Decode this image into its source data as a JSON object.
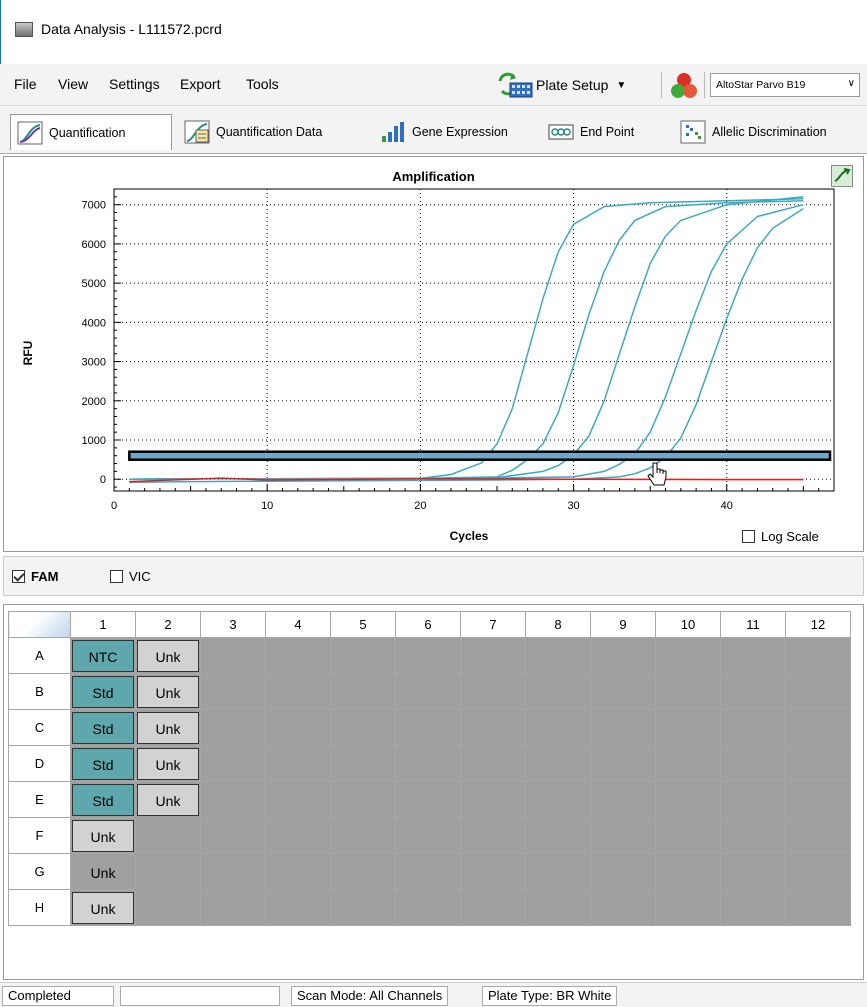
{
  "window": {
    "title": "Data Analysis - L111572.pcrd"
  },
  "menu": {
    "items": [
      "File",
      "View",
      "Settings",
      "Export",
      "Tools"
    ],
    "plate_setup": "Plate Setup",
    "assay": "AltoStar Parvo B19"
  },
  "tabs": [
    "Quantification",
    "Quantification Data",
    "Gene Expression",
    "End Point",
    "Allelic Discrimination"
  ],
  "colors": {
    "curve": "#3fa9bd",
    "ntc_curve": "#e02020",
    "threshold": "#000000",
    "teal_well": "#5ea7ad",
    "grey_well": "#d2d2d2",
    "empty_well": "#a0a0a0"
  },
  "chart_data": {
    "type": "line",
    "title": "Amplification",
    "xlabel": "Cycles",
    "ylabel": "RFU",
    "xlim": [
      0,
      47
    ],
    "ylim": [
      -300,
      7400
    ],
    "x_ticks": [
      0,
      10,
      20,
      30,
      40
    ],
    "y_ticks": [
      0,
      1000,
      2000,
      3000,
      4000,
      5000,
      6000,
      7000
    ],
    "grid": true,
    "log_scale": false,
    "log_scale_label": "Log Scale",
    "threshold": 600,
    "series": [
      {
        "x": [
          1,
          5,
          10,
          15,
          20,
          22,
          24,
          25,
          26,
          27,
          28,
          29,
          30,
          32,
          35,
          40,
          45
        ],
        "y": [
          0,
          10,
          10,
          15,
          20,
          120,
          420,
          900,
          1800,
          3200,
          4600,
          5800,
          6500,
          6950,
          7050,
          7100,
          7150
        ]
      },
      {
        "x": [
          1,
          5,
          10,
          15,
          20,
          25,
          26,
          27,
          28,
          29,
          30,
          31,
          32,
          33,
          34,
          36,
          40,
          45
        ],
        "y": [
          0,
          10,
          10,
          15,
          20,
          60,
          230,
          500,
          900,
          1700,
          2900,
          4200,
          5300,
          6100,
          6600,
          6950,
          7050,
          7100
        ]
      },
      {
        "x": [
          1,
          5,
          10,
          15,
          20,
          25,
          28,
          29,
          30,
          31,
          32,
          33,
          34,
          35,
          36,
          37,
          40,
          45
        ],
        "y": [
          0,
          10,
          10,
          15,
          20,
          40,
          200,
          350,
          620,
          1100,
          2000,
          3200,
          4400,
          5500,
          6200,
          6600,
          7000,
          7200
        ]
      },
      {
        "x": [
          1,
          5,
          10,
          15,
          20,
          25,
          30,
          32,
          33,
          34,
          35,
          36,
          37,
          38,
          39,
          40,
          42,
          45
        ],
        "y": [
          0,
          10,
          10,
          15,
          20,
          30,
          60,
          200,
          380,
          650,
          1200,
          2100,
          3200,
          4300,
          5300,
          6000,
          6700,
          7000
        ]
      },
      {
        "x": [
          1,
          5,
          10,
          15,
          20,
          25,
          30,
          33,
          34,
          35,
          36,
          37,
          38,
          39,
          40,
          41,
          42,
          43,
          45
        ],
        "y": [
          -80,
          -60,
          -50,
          -40,
          -30,
          -20,
          0,
          60,
          140,
          290,
          560,
          1050,
          1900,
          3000,
          4100,
          5100,
          5900,
          6400,
          6900
        ]
      },
      {
        "x": [
          1,
          7,
          10,
          20,
          30,
          40,
          45
        ],
        "y": [
          -60,
          30,
          -20,
          10,
          0,
          -10,
          -10
        ],
        "ntc": true
      }
    ]
  },
  "channels": [
    {
      "name": "FAM",
      "checked": true,
      "bold": true
    },
    {
      "name": "VIC",
      "checked": false,
      "bold": false
    }
  ],
  "plate": {
    "columns": [
      "1",
      "2",
      "3",
      "4",
      "5",
      "6",
      "7",
      "8",
      "9",
      "10",
      "11",
      "12"
    ],
    "rows": [
      "A",
      "B",
      "C",
      "D",
      "E",
      "F",
      "G",
      "H"
    ],
    "wells": {
      "A": [
        {
          "t": "NTC",
          "s": "teal"
        },
        {
          "t": "Unk",
          "s": "grey"
        }
      ],
      "B": [
        {
          "t": "Std",
          "s": "teal"
        },
        {
          "t": "Unk",
          "s": "grey"
        }
      ],
      "C": [
        {
          "t": "Std",
          "s": "teal"
        },
        {
          "t": "Unk",
          "s": "grey"
        }
      ],
      "D": [
        {
          "t": "Std",
          "s": "teal"
        },
        {
          "t": "Unk",
          "s": "grey"
        }
      ],
      "E": [
        {
          "t": "Std",
          "s": "teal"
        },
        {
          "t": "Unk",
          "s": "grey"
        }
      ],
      "F": [
        {
          "t": "Unk",
          "s": "grey"
        }
      ],
      "G": [
        {
          "t": "Unk",
          "s": "flat"
        }
      ],
      "H": [
        {
          "t": "Unk",
          "s": "grey"
        }
      ]
    }
  },
  "status": {
    "state": "Completed",
    "scan_mode": "Scan Mode: All Channels",
    "plate_type": "Plate Type: BR White"
  }
}
